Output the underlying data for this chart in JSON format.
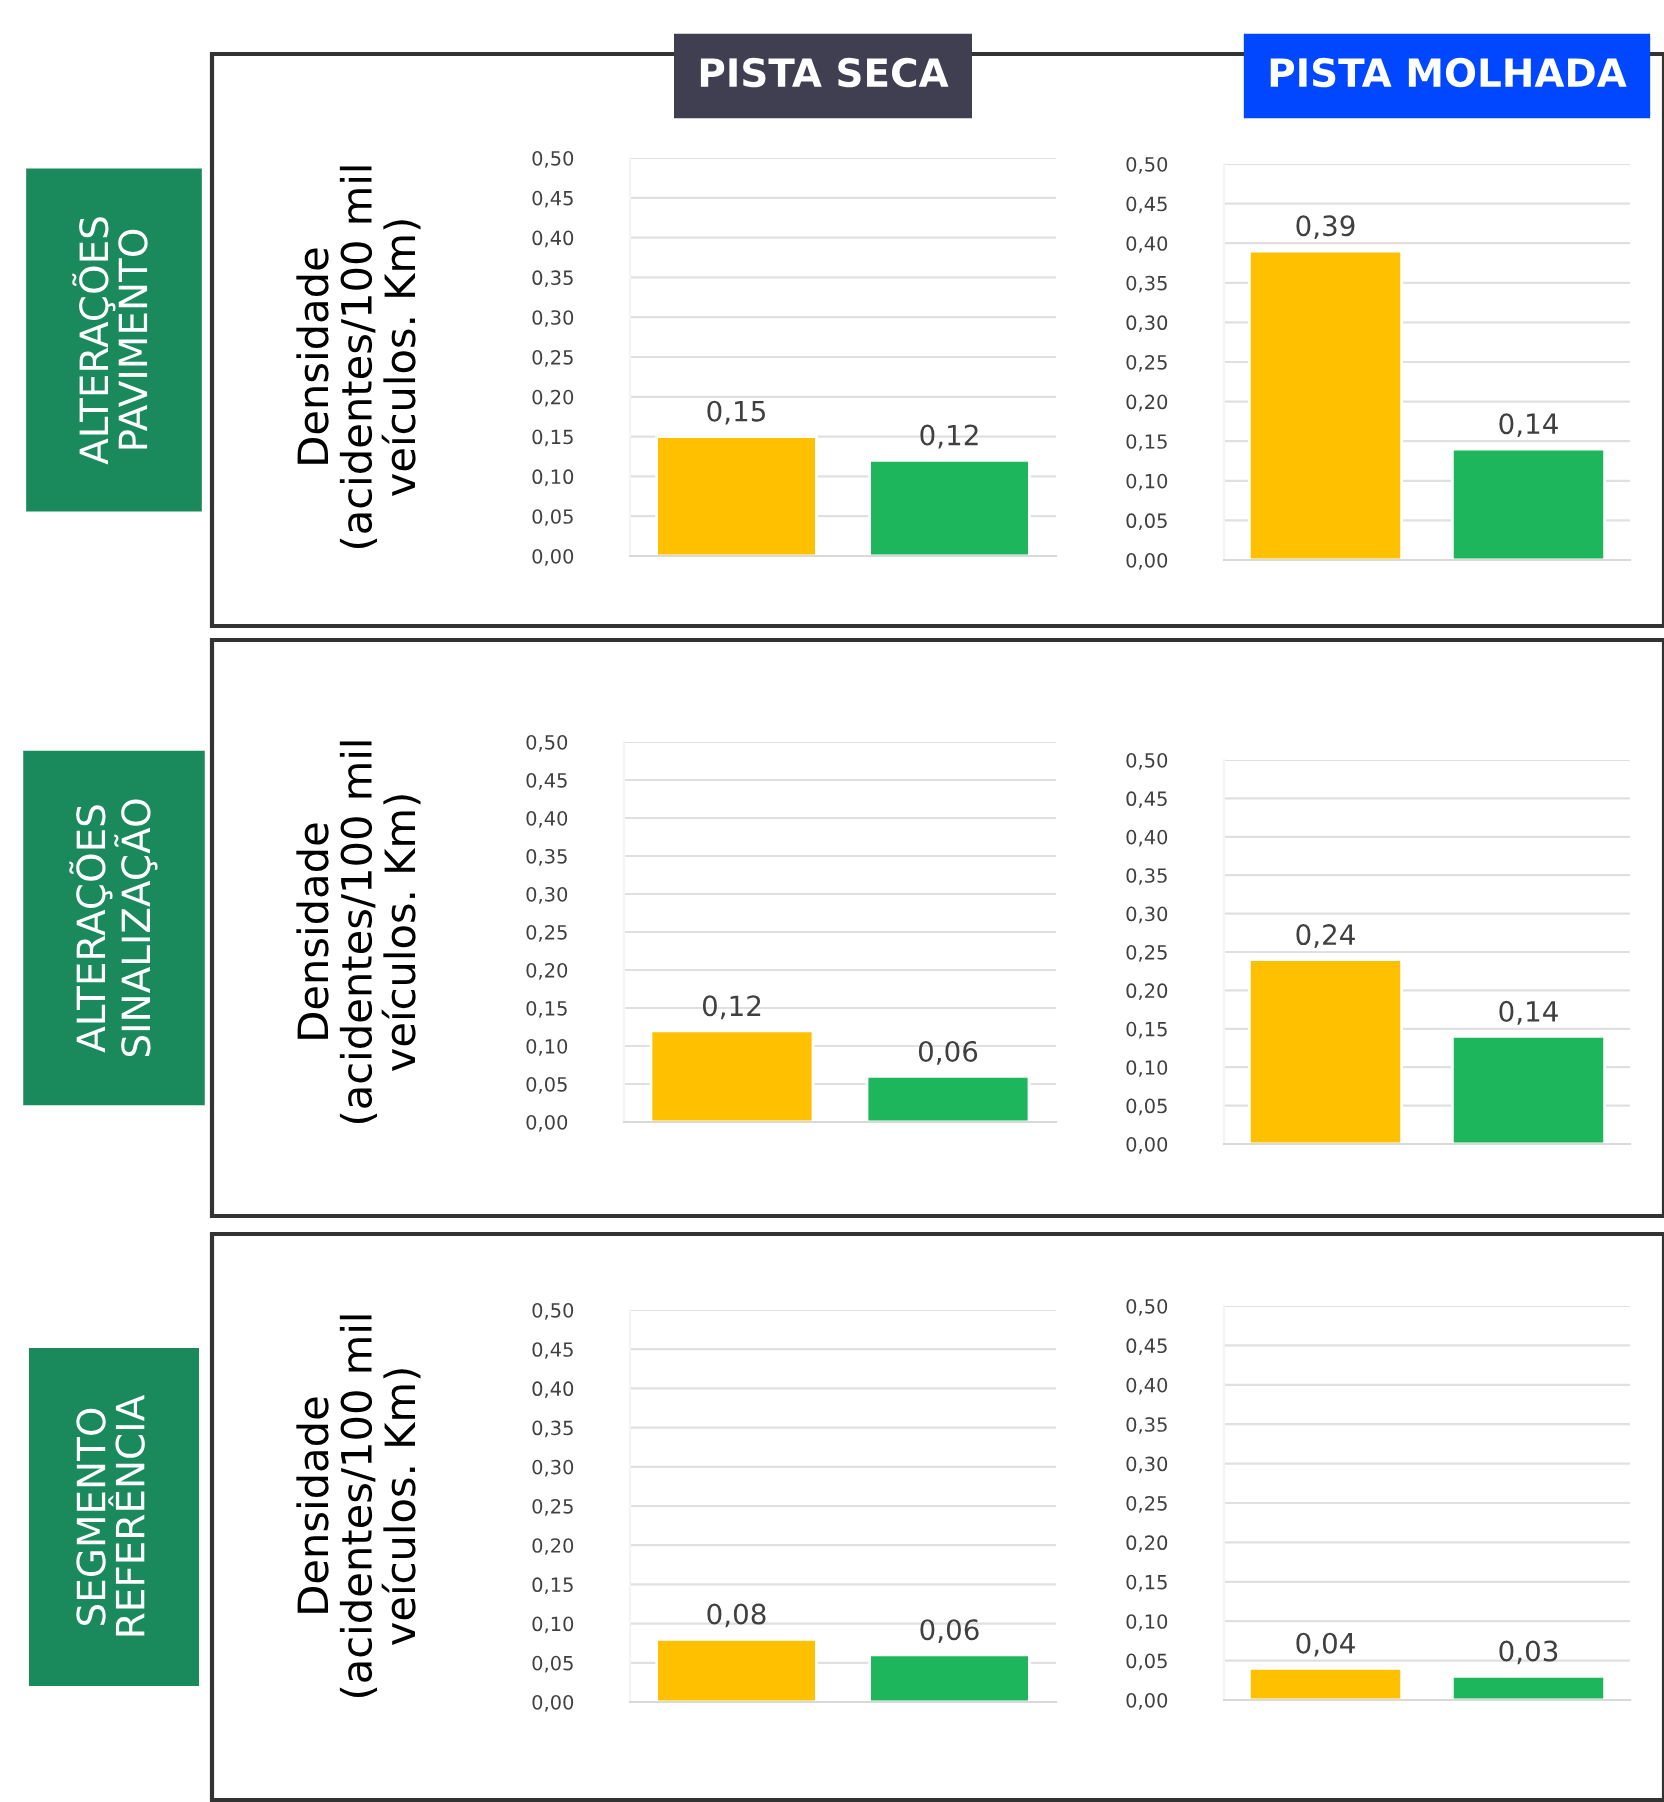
{
  "chart_data": [
    {
      "type": "bar",
      "title": "PISTA SECA",
      "ylabel": "Densidade\n(acidentes/100 mil\nveículos. Km)",
      "annotations": [
        "ALTERAÇÕES\nPAVIMENTO"
      ],
      "categories": [
        null,
        null
      ],
      "values": [
        0.15,
        0.12
      ],
      "colors": [
        "#ffc000",
        "#1db65c"
      ],
      "value_labels": [
        "0,15",
        "0,12"
      ],
      "ylim": [
        0,
        0.5
      ],
      "yticks": [
        {
          "value": 0,
          "label": "0,00"
        },
        {
          "value": 0.05,
          "label": "0,05"
        },
        {
          "value": 0.1,
          "label": "0,10"
        },
        {
          "value": 0.15,
          "label": "0,15"
        },
        {
          "value": 0.2,
          "label": "0,20"
        },
        {
          "value": 0.25,
          "label": "0,25"
        },
        {
          "value": 0.3,
          "label": "0,30"
        },
        {
          "value": 0.35,
          "label": "0,35"
        },
        {
          "value": 0.4,
          "label": "0,40"
        },
        {
          "value": 0.45,
          "label": "0,45"
        },
        {
          "value": 0.5,
          "label": "0,50"
        }
      ],
      "grid": "y"
    },
    {
      "type": "bar",
      "title": "PISTA MOLHADA",
      "categories": [
        null,
        null
      ],
      "values": [
        0.39,
        0.14
      ],
      "colors": [
        "#ffc000",
        "#1db65c"
      ],
      "value_labels": [
        "0,39",
        "0,14"
      ],
      "ylim": [
        0,
        0.5
      ],
      "yticks": [
        {
          "value": 0,
          "label": "0,00"
        },
        {
          "value": 0.05,
          "label": "0,05"
        },
        {
          "value": 0.1,
          "label": "0,10"
        },
        {
          "value": 0.15,
          "label": "0,15"
        },
        {
          "value": 0.2,
          "label": "0,20"
        },
        {
          "value": 0.25,
          "label": "0,25"
        },
        {
          "value": 0.3,
          "label": "0,30"
        },
        {
          "value": 0.35,
          "label": "0,35"
        },
        {
          "value": 0.4,
          "label": "0,40"
        },
        {
          "value": 0.45,
          "label": "0,45"
        },
        {
          "value": 0.5,
          "label": "0,50"
        }
      ],
      "grid": "y"
    },
    {
      "type": "bar",
      "ylabel": "Densidade\n(acidentes/100 mil\nveículos. Km)",
      "annotations": [
        "ALTERAÇÕES\nSINALIZAÇÃO"
      ],
      "categories": [
        null,
        null
      ],
      "values": [
        0.12,
        0.06
      ],
      "colors": [
        "#ffc000",
        "#1db65c"
      ],
      "value_labels": [
        "0,12",
        "0,06"
      ],
      "ylim": [
        0,
        0.5
      ],
      "yticks": [
        {
          "value": 0,
          "label": "0,00"
        },
        {
          "value": 0.05,
          "label": "0,05"
        },
        {
          "value": 0.1,
          "label": "0,10"
        },
        {
          "value": 0.15,
          "label": "0,15"
        },
        {
          "value": 0.2,
          "label": "0,20"
        },
        {
          "value": 0.25,
          "label": "0,25"
        },
        {
          "value": 0.3,
          "label": "0,30"
        },
        {
          "value": 0.35,
          "label": "0,35"
        },
        {
          "value": 0.4,
          "label": "0,40"
        },
        {
          "value": 0.45,
          "label": "0,45"
        },
        {
          "value": 0.5,
          "label": "0,50"
        }
      ],
      "grid": "y"
    },
    {
      "type": "bar",
      "categories": [
        null,
        null
      ],
      "values": [
        0.24,
        0.14
      ],
      "colors": [
        "#ffc000",
        "#1db65c"
      ],
      "value_labels": [
        "0,24",
        "0,14"
      ],
      "ylim": [
        0,
        0.5
      ],
      "yticks": [
        {
          "value": 0,
          "label": "0,00"
        },
        {
          "value": 0.05,
          "label": "0,05"
        },
        {
          "value": 0.1,
          "label": "0,10"
        },
        {
          "value": 0.15,
          "label": "0,15"
        },
        {
          "value": 0.2,
          "label": "0,20"
        },
        {
          "value": 0.25,
          "label": "0,25"
        },
        {
          "value": 0.3,
          "label": "0,30"
        },
        {
          "value": 0.35,
          "label": "0,35"
        },
        {
          "value": 0.4,
          "label": "0,40"
        },
        {
          "value": 0.45,
          "label": "0,45"
        },
        {
          "value": 0.5,
          "label": "0,50"
        }
      ],
      "grid": "y"
    },
    {
      "type": "bar",
      "ylabel": "Densidade\n(acidentes/100 mil\nveículos. Km)",
      "annotations": [
        "SEGMENTO\nREFERÊNCIA"
      ],
      "categories": [
        null,
        null
      ],
      "values": [
        0.08,
        0.06
      ],
      "colors": [
        "#ffc000",
        "#1db65c"
      ],
      "value_labels": [
        "0,08",
        "0,06"
      ],
      "ylim": [
        0,
        0.5
      ],
      "yticks": [
        {
          "value": 0,
          "label": "0,00"
        },
        {
          "value": 0.05,
          "label": "0,05"
        },
        {
          "value": 0.1,
          "label": "0,10"
        },
        {
          "value": 0.15,
          "label": "0,15"
        },
        {
          "value": 0.2,
          "label": "0,20"
        },
        {
          "value": 0.25,
          "label": "0,25"
        },
        {
          "value": 0.3,
          "label": "0,30"
        },
        {
          "value": 0.35,
          "label": "0,35"
        },
        {
          "value": 0.4,
          "label": "0,40"
        },
        {
          "value": 0.45,
          "label": "0,45"
        },
        {
          "value": 0.5,
          "label": "0,50"
        }
      ],
      "grid": "y"
    },
    {
      "type": "bar",
      "categories": [
        null,
        null
      ],
      "values": [
        0.04,
        0.03
      ],
      "colors": [
        "#ffc000",
        "#1db65c"
      ],
      "value_labels": [
        "0,04",
        "0,03"
      ],
      "ylim": [
        0,
        0.5
      ],
      "yticks": [
        {
          "value": 0,
          "label": "0,00"
        },
        {
          "value": 0.05,
          "label": "0,05"
        },
        {
          "value": 0.1,
          "label": "0,10"
        },
        {
          "value": 0.15,
          "label": "0,15"
        },
        {
          "value": 0.2,
          "label": "0,20"
        },
        {
          "value": 0.25,
          "label": "0,25"
        },
        {
          "value": 0.3,
          "label": "0,30"
        },
        {
          "value": 0.35,
          "label": "0,35"
        },
        {
          "value": 0.4,
          "label": "0,40"
        },
        {
          "value": 0.45,
          "label": "0,45"
        },
        {
          "value": 0.5,
          "label": "0,50"
        }
      ],
      "grid": "y"
    }
  ]
}
